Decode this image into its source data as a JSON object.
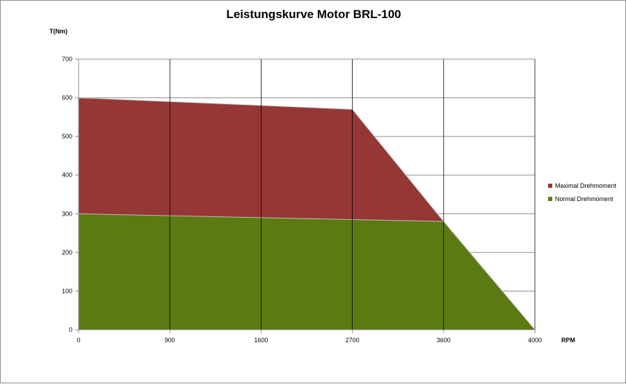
{
  "chart_data": {
    "type": "area",
    "title": "Leistungskurve Motor BRL-100",
    "xlabel": "RPM",
    "ylabel": "T(Nm)",
    "categories": [
      "0",
      "900",
      "1600",
      "2700",
      "3600",
      "4000"
    ],
    "ylim": [
      0,
      700
    ],
    "yticks": [
      0,
      100,
      200,
      300,
      400,
      500,
      600,
      700
    ],
    "grid": true,
    "legend": "right",
    "series": [
      {
        "name": "Maximal Drehmoment",
        "color": "#953735",
        "values": [
          600,
          590,
          580,
          570,
          280,
          0
        ]
      },
      {
        "name": "Normal Drehmoment",
        "color": "#5b7a12",
        "values": [
          300,
          295,
          290,
          285,
          280,
          0
        ]
      }
    ]
  }
}
